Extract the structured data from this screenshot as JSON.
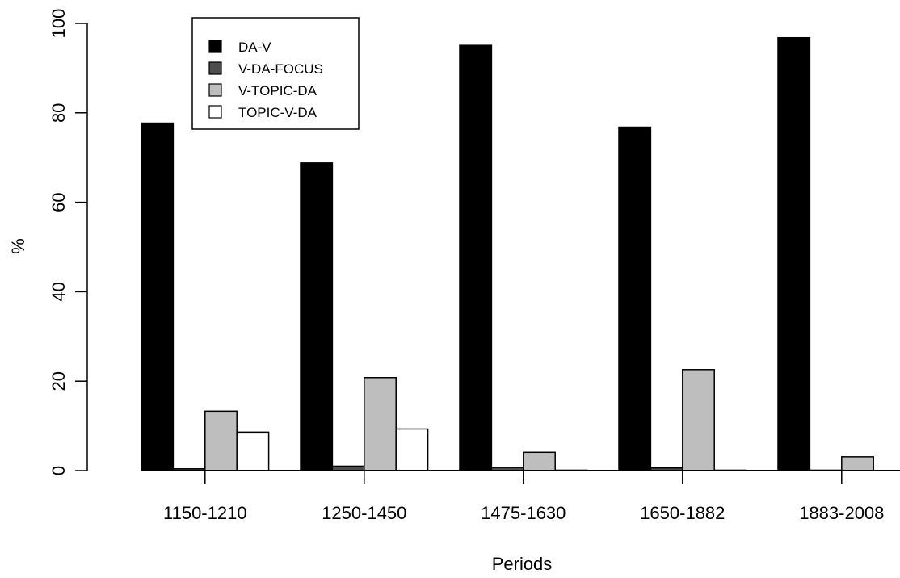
{
  "chart_data": {
    "type": "bar",
    "title": "",
    "xlabel": "Periods",
    "ylabel": "%",
    "ylim": [
      0,
      100
    ],
    "yticks": [
      0,
      20,
      40,
      60,
      80,
      100
    ],
    "categories": [
      "1150-1210",
      "1250-1450",
      "1475-1630",
      "1650-1882",
      "1883-2008"
    ],
    "series": [
      {
        "name": "DA-V",
        "color": "#000000",
        "values": [
          77.7,
          68.8,
          95.1,
          76.8,
          96.8
        ]
      },
      {
        "name": "V-DA-FOCUS",
        "color": "#4d4d4d",
        "values": [
          0.4,
          1.0,
          0.7,
          0.6,
          0.1
        ]
      },
      {
        "name": "V-TOPIC-DA",
        "color": "#bebebe",
        "values": [
          13.3,
          20.8,
          4.1,
          22.6,
          3.1
        ]
      },
      {
        "name": "TOPIC-V-DA",
        "color": "#ffffff",
        "values": [
          8.6,
          9.3,
          0.1,
          0.1,
          0.0
        ]
      }
    ],
    "legend_position": "top-left",
    "grid": false
  }
}
